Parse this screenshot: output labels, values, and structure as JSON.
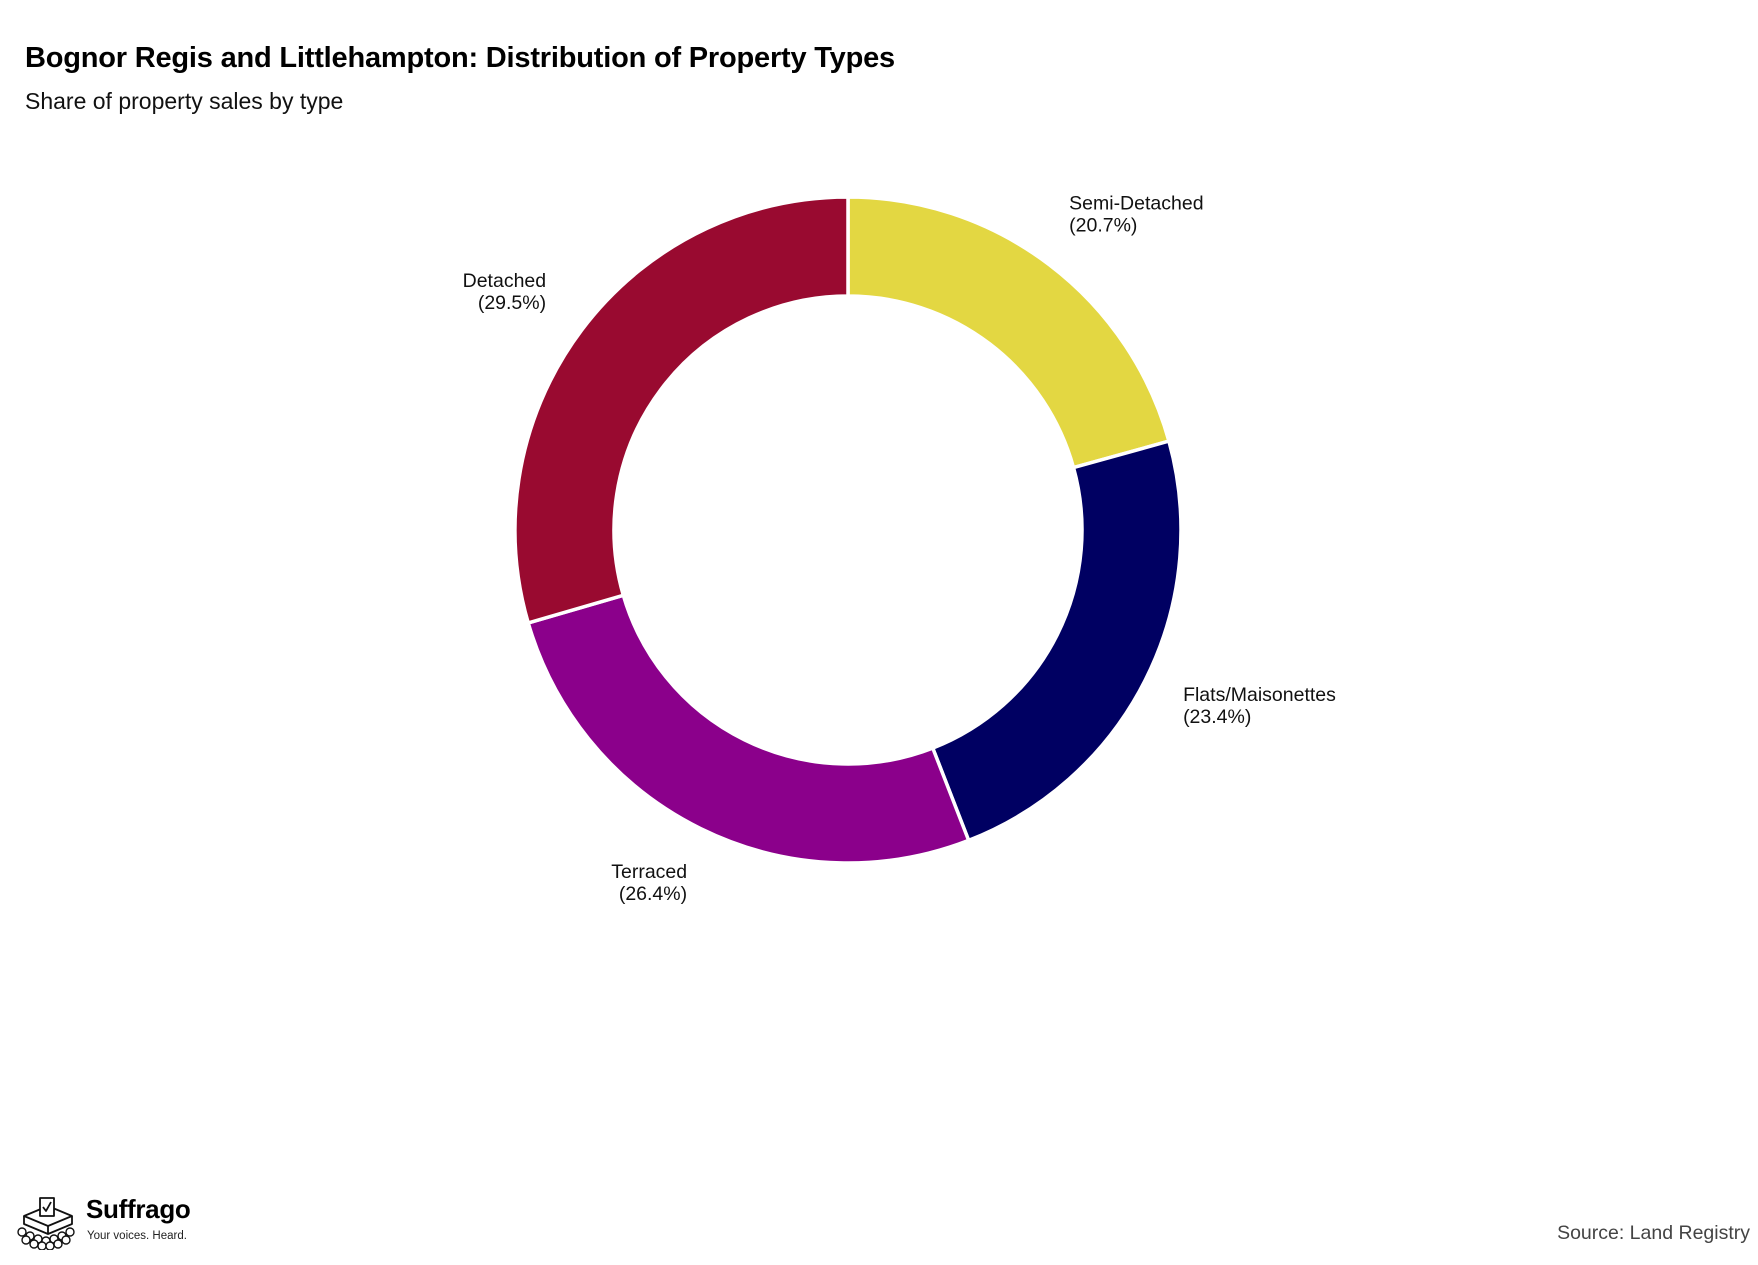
{
  "title": "Bognor Regis and Littlehampton: Distribution of Property Types",
  "subtitle": "Share of property sales by type",
  "source": "Source: Land Registry",
  "logo": {
    "name": "Suffrago",
    "tagline": "Your voices. Heard."
  },
  "chart_data": {
    "type": "pie",
    "style": "donut",
    "title": "Bognor Regis and Littlehampton: Distribution of Property Types",
    "subtitle": "Share of property sales by type",
    "slices": [
      {
        "label": "Semi-Detached",
        "value": 20.7,
        "value_text": "(20.7%)",
        "color": "#E3D742"
      },
      {
        "label": "Flats/Maisonettes",
        "value": 23.4,
        "value_text": "(23.4%)",
        "color": "#000062"
      },
      {
        "label": "Terraced",
        "value": 26.4,
        "value_text": "(26.4%)",
        "color": "#8B008B"
      },
      {
        "label": "Detached",
        "value": 29.5,
        "value_text": "(29.5%)",
        "color": "#990A30"
      }
    ],
    "start_angle": "top",
    "direction": "clockwise",
    "legend": "none"
  }
}
